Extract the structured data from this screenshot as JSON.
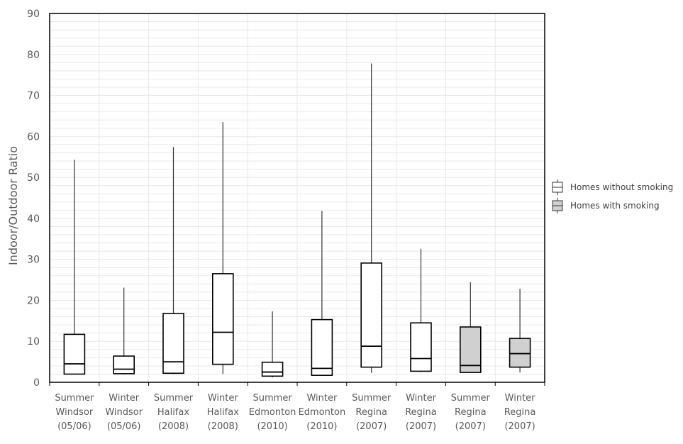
{
  "chart_data": {
    "type": "boxplot",
    "ylabel": "Indoor/Outdoor Ratio",
    "ylim": [
      0,
      90
    ],
    "yticks": [
      0,
      10,
      20,
      30,
      40,
      50,
      60,
      70,
      80,
      90
    ],
    "grid": "on",
    "legend_placement": "right",
    "categories": [
      [
        "Summer",
        "Windsor",
        "(05/06)"
      ],
      [
        "Winter",
        "Windsor",
        "(05/06)"
      ],
      [
        "Summer",
        "Halifax",
        "(2008)"
      ],
      [
        "Winter",
        "Halifax",
        "(2008)"
      ],
      [
        "Summer",
        "Edmonton",
        "(2010)"
      ],
      [
        "Winter",
        "Edmonton",
        "(2010)"
      ],
      [
        "Summer",
        "Regina",
        "(2007)"
      ],
      [
        "Winter",
        "Regina",
        "(2007)"
      ],
      [
        "Summer",
        "Regina",
        "(2007)"
      ],
      [
        "Winter",
        "Regina",
        "(2007)"
      ]
    ],
    "series": [
      {
        "name": "Homes without smoking",
        "color": "#ffffff"
      },
      {
        "name": "Homes with smoking",
        "color": "#d0d0d0"
      }
    ],
    "boxes": [
      {
        "series": 0,
        "min": 2.0,
        "q1": 2.0,
        "median": 4.5,
        "q3": 11.7,
        "max": 54.3
      },
      {
        "series": 0,
        "min": 1.9,
        "q1": 2.1,
        "median": 3.2,
        "q3": 6.4,
        "max": 23.1
      },
      {
        "series": 0,
        "min": 2.0,
        "q1": 2.2,
        "median": 5.0,
        "q3": 16.8,
        "max": 57.4
      },
      {
        "series": 0,
        "min": 2.0,
        "q1": 4.4,
        "median": 12.2,
        "q3": 26.5,
        "max": 63.5
      },
      {
        "series": 0,
        "min": 1.2,
        "q1": 1.5,
        "median": 2.5,
        "q3": 4.9,
        "max": 17.3
      },
      {
        "series": 0,
        "min": 1.6,
        "q1": 1.7,
        "median": 3.4,
        "q3": 15.3,
        "max": 41.8
      },
      {
        "series": 0,
        "min": 2.3,
        "q1": 3.7,
        "median": 8.8,
        "q3": 29.1,
        "max": 77.8
      },
      {
        "series": 0,
        "min": 2.5,
        "q1": 2.7,
        "median": 5.8,
        "q3": 14.5,
        "max": 32.6
      },
      {
        "series": 1,
        "min": 2.4,
        "q1": 2.4,
        "median": 4.1,
        "q3": 13.5,
        "max": 24.4
      },
      {
        "series": 1,
        "min": 2.4,
        "q1": 3.7,
        "median": 7.0,
        "q3": 10.7,
        "max": 22.8
      }
    ]
  }
}
